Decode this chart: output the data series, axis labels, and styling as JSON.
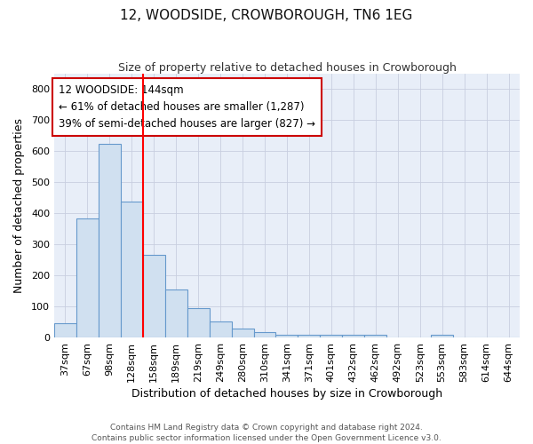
{
  "title": "12, WOODSIDE, CROWBOROUGH, TN6 1EG",
  "subtitle": "Size of property relative to detached houses in Crowborough",
  "xlabel": "Distribution of detached houses by size in Crowborough",
  "ylabel": "Number of detached properties",
  "categories": [
    "37sqm",
    "67sqm",
    "98sqm",
    "128sqm",
    "158sqm",
    "189sqm",
    "219sqm",
    "249sqm",
    "280sqm",
    "310sqm",
    "341sqm",
    "371sqm",
    "401sqm",
    "432sqm",
    "462sqm",
    "492sqm",
    "523sqm",
    "553sqm",
    "583sqm",
    "614sqm",
    "644sqm"
  ],
  "values": [
    45,
    383,
    625,
    438,
    265,
    155,
    95,
    52,
    28,
    17,
    10,
    10,
    10,
    10,
    8,
    0,
    0,
    8,
    0,
    0,
    0
  ],
  "bar_color": "#d0e0f0",
  "bar_edge_color": "#6699cc",
  "annotation_text": "12 WOODSIDE: 144sqm\n← 61% of detached houses are smaller (1,287)\n39% of semi-detached houses are larger (827) →",
  "annotation_box_color": "#ffffff",
  "annotation_box_edge": "#cc0000",
  "ylim": [
    0,
    850
  ],
  "yticks": [
    0,
    100,
    200,
    300,
    400,
    500,
    600,
    700,
    800
  ],
  "footer_line1": "Contains HM Land Registry data © Crown copyright and database right 2024.",
  "footer_line2": "Contains public sector information licensed under the Open Government Licence v3.0.",
  "background_color": "#e8eef8",
  "grid_color": "#c8cee0",
  "title_fontsize": 11,
  "subtitle_fontsize": 9,
  "xlabel_fontsize": 9,
  "ylabel_fontsize": 9,
  "tick_fontsize": 8,
  "annot_fontsize": 8.5,
  "footer_fontsize": 6.5
}
